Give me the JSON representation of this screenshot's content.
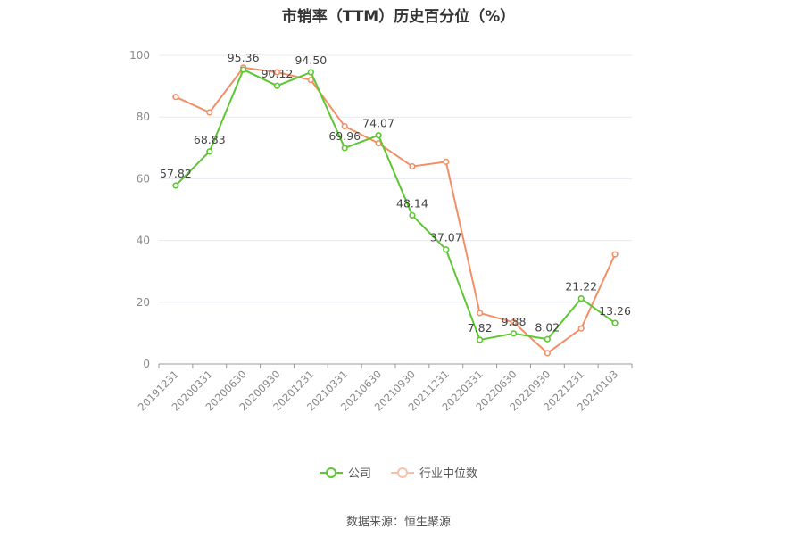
{
  "chart_data": {
    "type": "line",
    "title": "市销率（TTM）历史百分位（%）",
    "xlabel": "",
    "ylabel": "",
    "categories": [
      "20191231",
      "20200331",
      "20200630",
      "20200930",
      "20201231",
      "20210331",
      "20210630",
      "20210930",
      "20211231",
      "20220331",
      "20220630",
      "20220930",
      "20221231",
      "20240103"
    ],
    "ylim": [
      0,
      100
    ],
    "yticks": [
      0,
      20,
      40,
      60,
      80,
      100
    ],
    "grid": true,
    "legend": "bottom-center",
    "series": [
      {
        "name": "公司",
        "color": "#5cc72f",
        "values": [
          57.82,
          68.83,
          95.36,
          90.12,
          94.5,
          69.96,
          74.07,
          48.14,
          37.07,
          7.82,
          9.88,
          8.02,
          21.22,
          13.26
        ],
        "labels": [
          "57.82",
          "68.83",
          "95.36",
          "90.12",
          "94.50",
          "69.96",
          "74.07",
          "48.14",
          "37.07",
          "7.82",
          "9.88",
          "8.02",
          "21.22",
          "13.26"
        ]
      },
      {
        "name": "行业中位数",
        "color": "#f28f67",
        "values": [
          86.5,
          81.5,
          96.0,
          94.5,
          92.0,
          77.0,
          71.5,
          64.0,
          65.5,
          16.5,
          13.5,
          3.5,
          11.5,
          35.5
        ]
      }
    ]
  },
  "source_text": "数据来源：恒生聚源"
}
